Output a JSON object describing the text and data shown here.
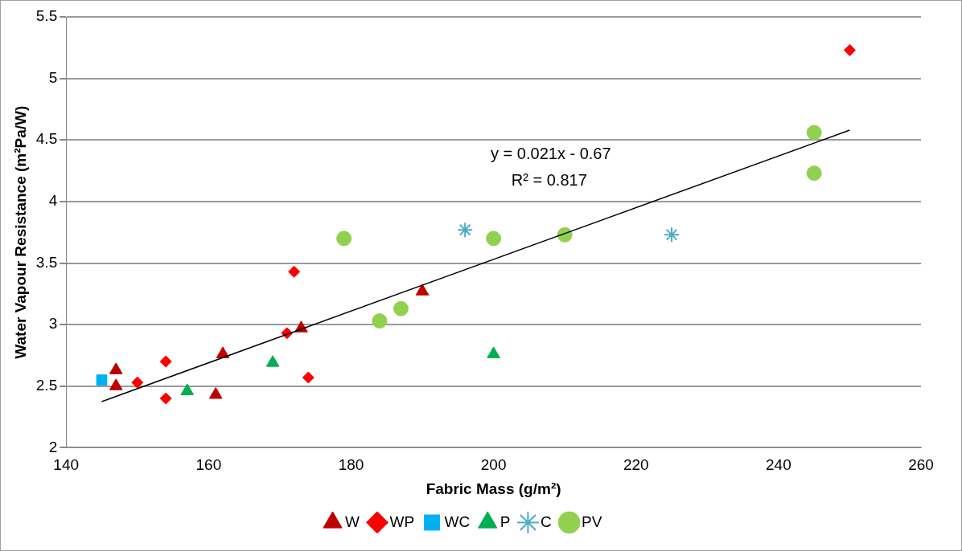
{
  "chart_data": {
    "type": "scatter",
    "xlabel": "Fabric Mass (g/m²)",
    "ylabel": "Water Vapour Resistance (m²Pa/W)",
    "xlim": [
      140,
      260
    ],
    "xticks": [
      140,
      160,
      180,
      200,
      220,
      240,
      260
    ],
    "ylim": [
      2,
      5.5
    ],
    "yticks": [
      2,
      2.5,
      3,
      3.5,
      4,
      4.5,
      5,
      5.5
    ],
    "grid": "y",
    "legend": "bottom",
    "annotations": [
      "y = 0.021x - 0.67",
      "R² = 0.817"
    ],
    "series": [
      {
        "name": "W",
        "color": "#c00000",
        "marker": "triangle",
        "x": [
          147,
          147,
          162,
          161,
          173,
          190
        ],
        "values": [
          2.63,
          2.5,
          2.76,
          2.43,
          2.97,
          3.27
        ]
      },
      {
        "name": "WP",
        "color": "#ff0000",
        "marker": "diamond",
        "x": [
          150,
          154,
          154,
          171,
          172,
          174,
          250
        ],
        "values": [
          2.53,
          2.7,
          2.4,
          2.93,
          3.43,
          2.57,
          5.23
        ]
      },
      {
        "name": "WC",
        "color": "#00b0f0",
        "marker": "square",
        "x": [
          145
        ],
        "values": [
          2.55
        ]
      },
      {
        "name": "P",
        "color": "#00b050",
        "marker": "triangle",
        "x": [
          157,
          169,
          200
        ],
        "values": [
          2.46,
          2.69,
          2.76
        ]
      },
      {
        "name": "C",
        "color": "#4bacc6",
        "marker": "cross",
        "x": [
          196,
          225
        ],
        "values": [
          3.77,
          3.73
        ]
      },
      {
        "name": "PV",
        "color": "#92d050",
        "marker": "circle",
        "x": [
          179,
          184,
          187,
          200,
          210,
          245,
          245
        ],
        "values": [
          3.7,
          3.03,
          3.13,
          3.7,
          3.73,
          4.56,
          4.23
        ]
      },
      {
        "type": "line",
        "color": "#000000",
        "marker": "none",
        "x": [
          145,
          250
        ],
        "values": [
          2.375,
          4.58
        ]
      }
    ]
  }
}
